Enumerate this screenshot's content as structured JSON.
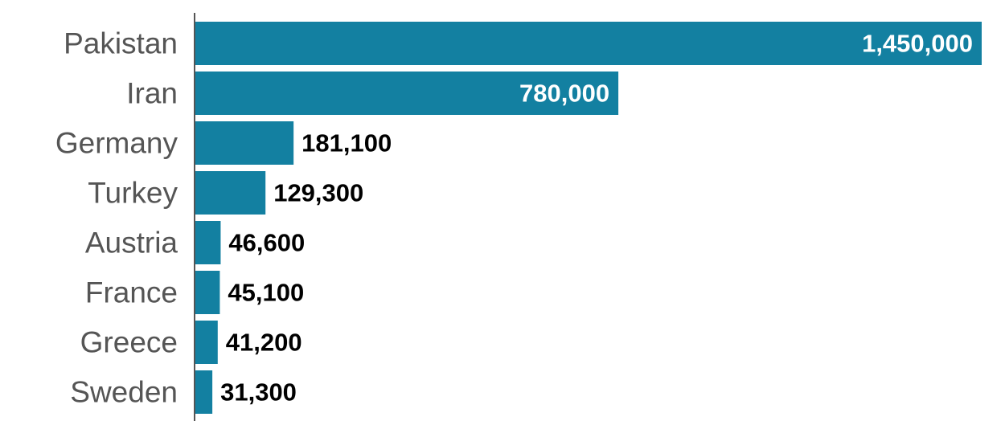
{
  "chart_data": {
    "type": "bar",
    "orientation": "horizontal",
    "categories": [
      "Pakistan",
      "Iran",
      "Germany",
      "Turkey",
      "Austria",
      "France",
      "Greece",
      "Sweden"
    ],
    "values": [
      1450000,
      780000,
      181100,
      129300,
      46600,
      45100,
      41200,
      31300
    ],
    "value_labels": [
      "1,450,000",
      "780,000",
      "181,100",
      "129,300",
      "46,600",
      "45,100",
      "41,200",
      "31,300"
    ],
    "title": "",
    "xlabel": "",
    "ylabel": "",
    "xlim": [
      0,
      1450000
    ],
    "grid": false,
    "legend": "none",
    "colors": {
      "bar": "#1380a1",
      "label_inside": "#ffffff",
      "label_outside": "#000000",
      "axis": "#555555"
    }
  }
}
